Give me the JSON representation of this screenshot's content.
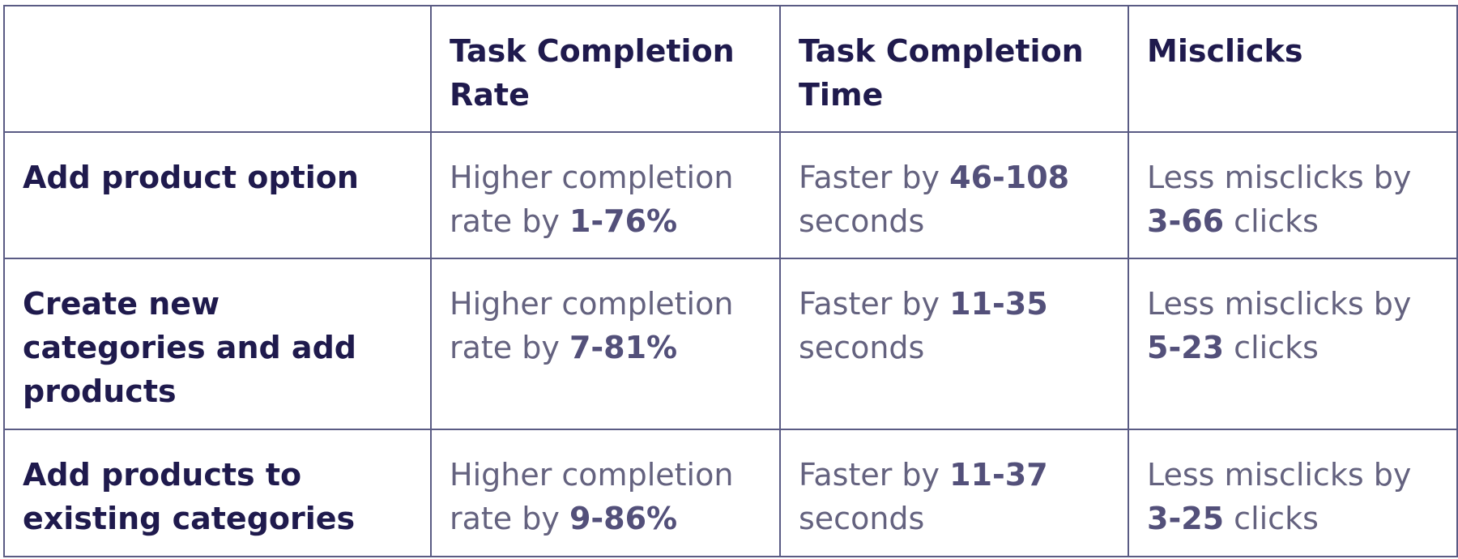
{
  "table": {
    "columns": [
      "",
      "Task Completion Rate",
      "Task Completion Time",
      "Misclicks"
    ],
    "rows": [
      {
        "task": "Add product option",
        "rate_prefix": "Higher completion rate by ",
        "rate_value": "1-76%",
        "time_prefix": "Faster by ",
        "time_value": "46-108",
        "time_suffix": " seconds",
        "mis_prefix": "Less misclicks by ",
        "mis_value": "3-66",
        "mis_suffix": " clicks"
      },
      {
        "task": "Create new categories and add products",
        "rate_prefix": "Higher completion rate by ",
        "rate_value": "7-81%",
        "time_prefix": "Faster by ",
        "time_value": "11-35",
        "time_suffix": " seconds",
        "mis_prefix": "Less misclicks by ",
        "mis_value": "5-23",
        "mis_suffix": " clicks"
      },
      {
        "task": "Add products to existing categories",
        "rate_prefix": "Higher completion rate by ",
        "rate_value": "9-86%",
        "time_prefix": "Faster by ",
        "time_value": "11-37",
        "time_suffix": " seconds",
        "mis_prefix": "Less misclicks by ",
        "mis_value": "3-25",
        "mis_suffix": " clicks"
      }
    ]
  }
}
